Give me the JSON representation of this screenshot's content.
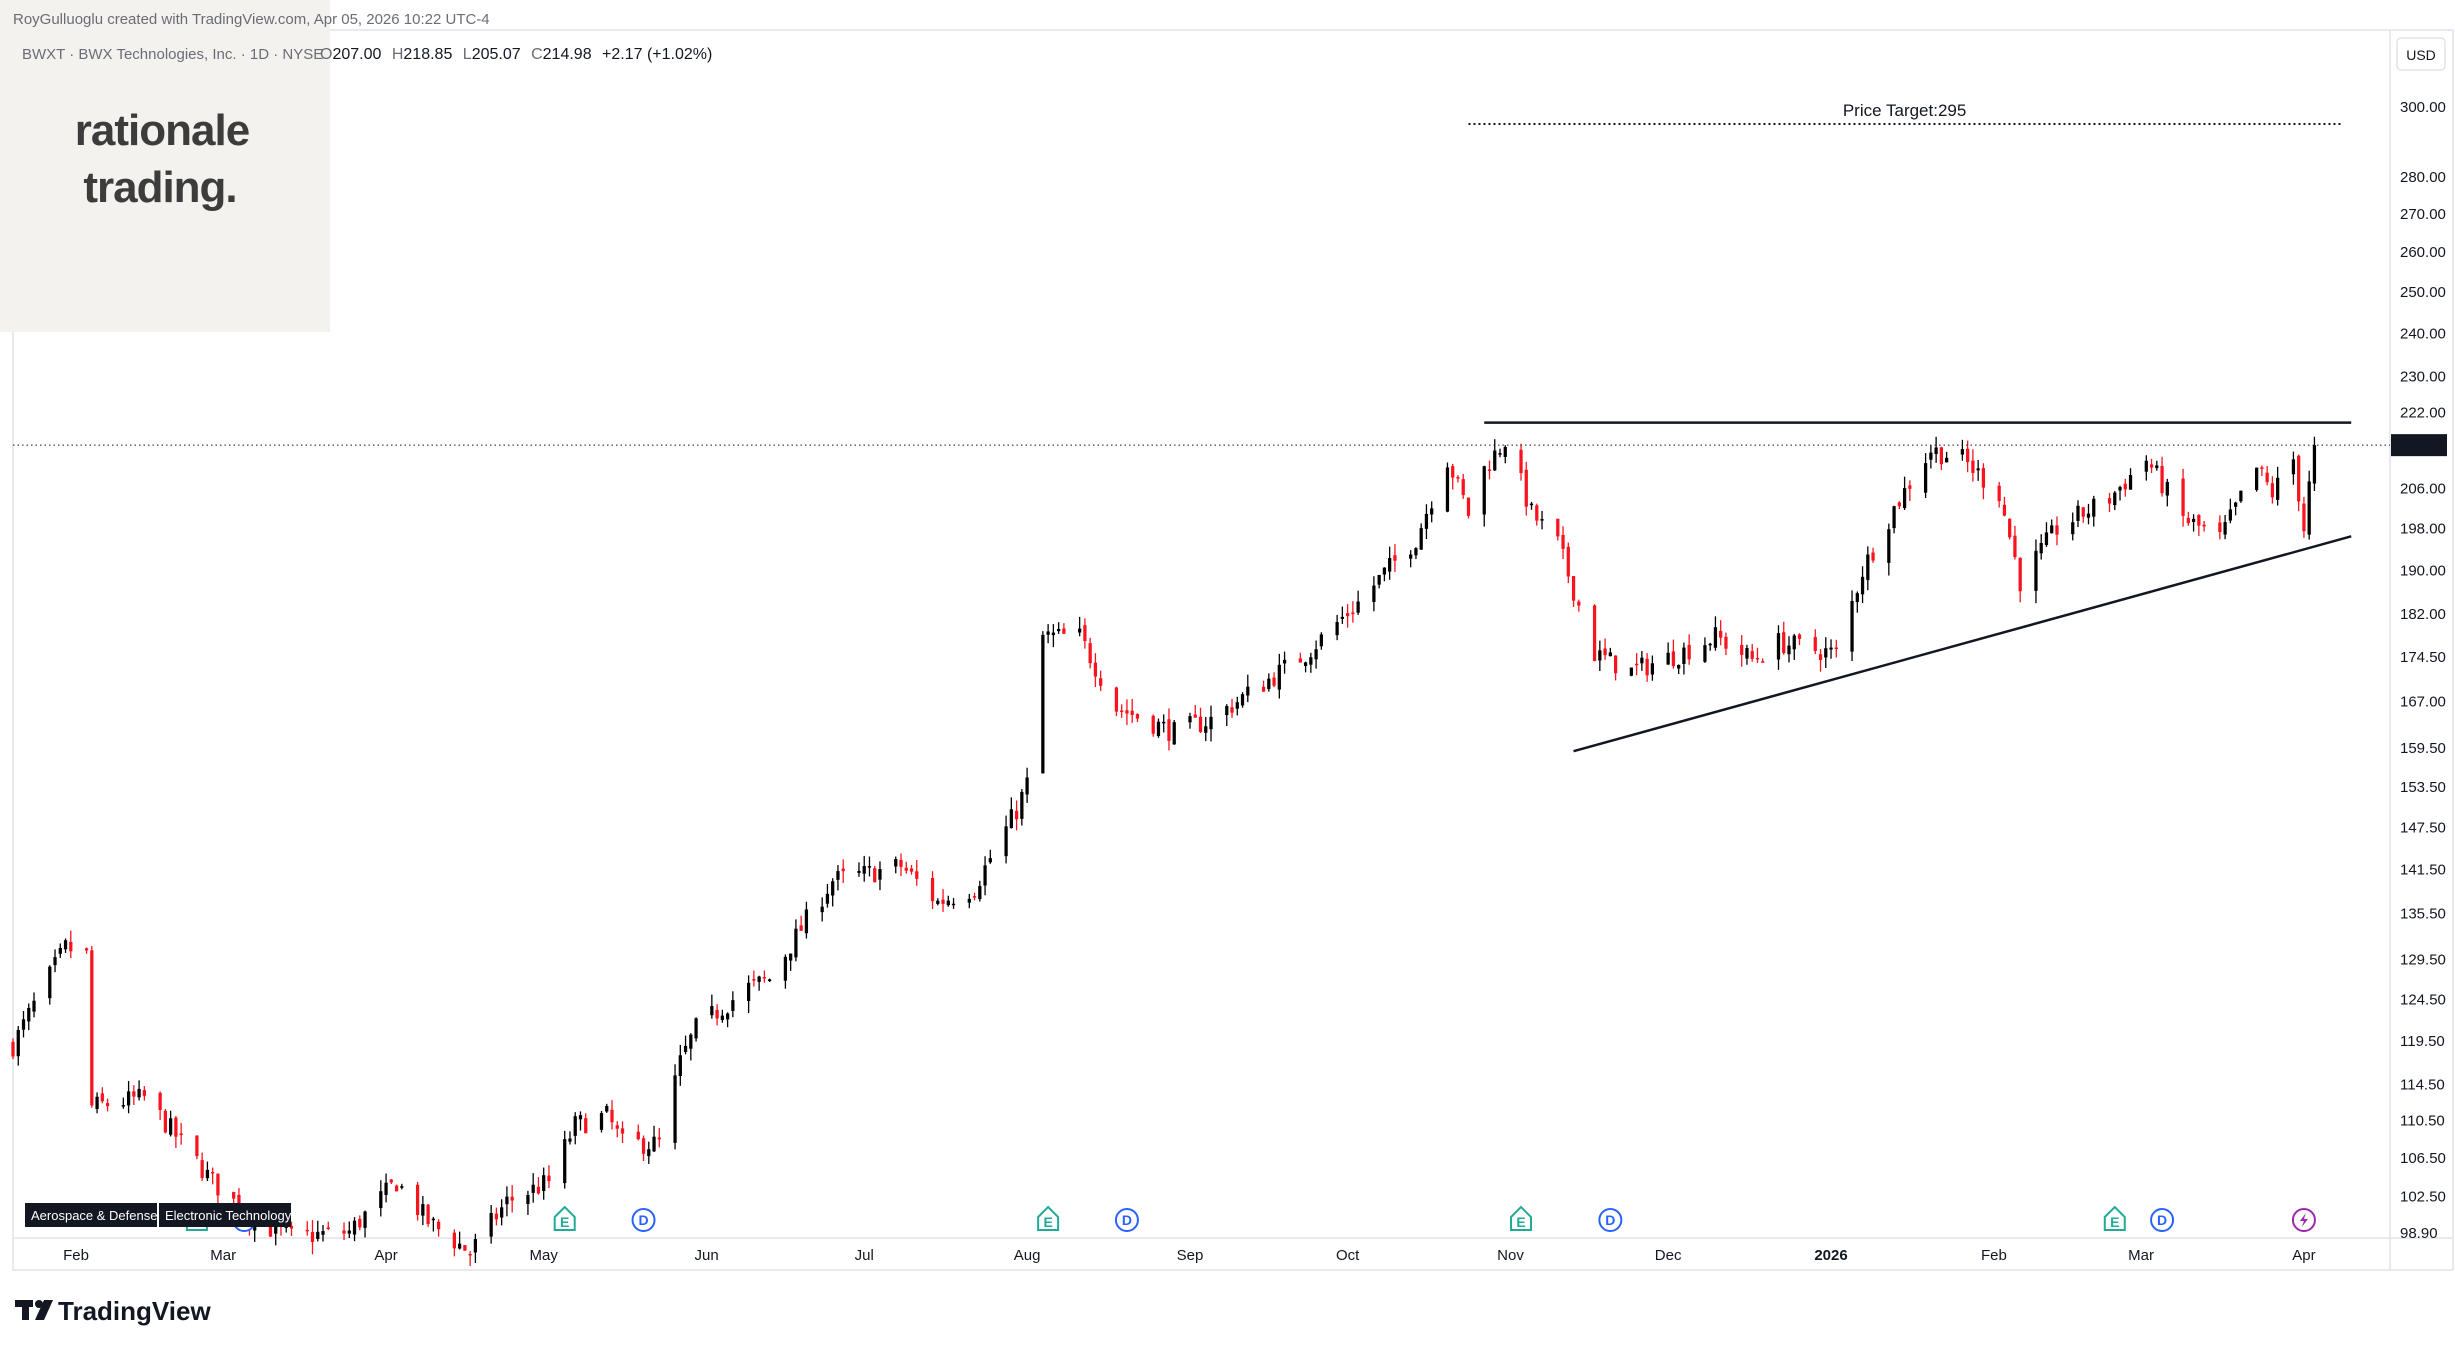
{
  "header": {
    "creator_line": "RoyGulluoglu created with TradingView.com, Apr 05, 2026 10:22 UTC-4",
    "symbol_line": "BWXT · BWX Technologies, Inc. · 1D · NYSE",
    "ohlc": {
      "open_label": "O",
      "open": "207.00",
      "high_label": "H",
      "high": "218.85",
      "low_label": "L",
      "low": "205.07",
      "close_label": "C",
      "close": "214.98",
      "change": "+2.17 (+1.02%)"
    }
  },
  "watermark": {
    "line1": "rationale",
    "line2": "trading."
  },
  "currency_button": "USD",
  "last_price_label": "214.98",
  "brand": {
    "name": "TradingView"
  },
  "sector_tags": [
    "Aerospace & Defense",
    "Electronic Technology"
  ],
  "colors": {
    "up": "#000000",
    "down": "#f7141e",
    "badge_e": "#22ab94",
    "badge_d": "#2962ff",
    "badge_split": "#9c27b0",
    "watermark_bg": "#f3f2ee"
  },
  "chart_data": {
    "type": "candlestick",
    "title": "BWXT · BWX Technologies, Inc. · 1D · NYSE",
    "y_scale": "log",
    "ylim": [
      98.9,
      305
    ],
    "y_ticks": [
      "300.00",
      "280.00",
      "270.00",
      "260.00",
      "250.00",
      "240.00",
      "230.00",
      "222.00",
      "214.98",
      "206.00",
      "198.00",
      "190.00",
      "182.00",
      "174.50",
      "167.00",
      "159.50",
      "153.50",
      "147.50",
      "141.50",
      "135.50",
      "129.50",
      "124.50",
      "119.50",
      "114.50",
      "110.50",
      "106.50",
      "102.50",
      "98.90"
    ],
    "x_months": [
      "Feb",
      "Mar",
      "Apr",
      "May",
      "Jun",
      "Jul",
      "Aug",
      "Sep",
      "Oct",
      "Nov",
      "Dec",
      "2026",
      "Feb",
      "Mar",
      "Apr"
    ],
    "x_range": [
      "2025-01-20",
      "2026-04-17"
    ],
    "price_target": {
      "label": "Price Target:295",
      "value": 295,
      "from": "2025-10-24",
      "to": "2026-04-08"
    },
    "resistance_line": {
      "value": 219.8,
      "from": "2025-10-27",
      "to": "2026-04-10"
    },
    "support_line": {
      "from": {
        "date": "2025-11-13",
        "value": 159.0
      },
      "to": {
        "date": "2026-04-10",
        "value": 196.5
      }
    },
    "last_price": 214.98,
    "events": [
      {
        "type": "E",
        "date": "2025-02-24"
      },
      {
        "type": "D",
        "date": "2025-03-05"
      },
      {
        "type": "E",
        "date": "2025-05-05"
      },
      {
        "type": "D",
        "date": "2025-05-20"
      },
      {
        "type": "E",
        "date": "2025-08-05"
      },
      {
        "type": "D",
        "date": "2025-08-20"
      },
      {
        "type": "E",
        "date": "2025-11-03"
      },
      {
        "type": "D",
        "date": "2025-11-20"
      },
      {
        "type": "E",
        "date": "2026-02-24"
      },
      {
        "type": "D",
        "date": "2026-03-05"
      },
      {
        "type": "S",
        "date": "2026-04-01"
      }
    ],
    "series": [
      {
        "name": "BWXT",
        "keyframes": [
          [
            "2025-01-20",
            119
          ],
          [
            "2025-01-30",
            131
          ],
          [
            "2025-02-03",
            130
          ],
          [
            "2025-02-04",
            112
          ],
          [
            "2025-02-14",
            113
          ],
          [
            "2025-02-27",
            104
          ],
          [
            "2025-03-07",
            100
          ],
          [
            "2025-03-14",
            98.5
          ],
          [
            "2025-03-25",
            99
          ],
          [
            "2025-04-03",
            104
          ],
          [
            "2025-04-09",
            100
          ],
          [
            "2025-04-17",
            97
          ],
          [
            "2025-04-24",
            102
          ],
          [
            "2025-05-02",
            104
          ],
          [
            "2025-05-07",
            110
          ],
          [
            "2025-05-13",
            111
          ],
          [
            "2025-05-16",
            108
          ],
          [
            "2025-05-23",
            108
          ],
          [
            "2025-05-27",
            117
          ],
          [
            "2025-05-30",
            121
          ],
          [
            "2025-06-09",
            126
          ],
          [
            "2025-06-13",
            127
          ],
          [
            "2025-06-25",
            140
          ],
          [
            "2025-07-02",
            141
          ],
          [
            "2025-07-08",
            142
          ],
          [
            "2025-07-15",
            137
          ],
          [
            "2025-07-22",
            139
          ],
          [
            "2025-07-30",
            150
          ],
          [
            "2025-08-01",
            154
          ],
          [
            "2025-08-04",
            178
          ],
          [
            "2025-08-11",
            178
          ],
          [
            "2025-08-18",
            166
          ],
          [
            "2025-08-29",
            162
          ],
          [
            "2025-09-05",
            164
          ],
          [
            "2025-09-15",
            170
          ],
          [
            "2025-09-23",
            175
          ],
          [
            "2025-10-03",
            184
          ],
          [
            "2025-10-14",
            196
          ],
          [
            "2025-10-20",
            212
          ],
          [
            "2025-10-24",
            201
          ],
          [
            "2025-10-27",
            210
          ],
          [
            "2025-10-31",
            216
          ],
          [
            "2025-11-05",
            201
          ],
          [
            "2025-11-10",
            195
          ],
          [
            "2025-11-17",
            175
          ],
          [
            "2025-11-24",
            172
          ],
          [
            "2025-12-03",
            175
          ],
          [
            "2025-12-10",
            178
          ],
          [
            "2025-12-17",
            174
          ],
          [
            "2025-12-22",
            177
          ],
          [
            "2026-01-02",
            175
          ],
          [
            "2026-01-07",
            190
          ],
          [
            "2026-01-13",
            202
          ],
          [
            "2026-01-20",
            214
          ],
          [
            "2026-01-26",
            212
          ],
          [
            "2026-02-02",
            205
          ],
          [
            "2026-02-06",
            188
          ],
          [
            "2026-02-13",
            198
          ],
          [
            "2026-02-23",
            204
          ],
          [
            "2026-03-02",
            212
          ],
          [
            "2026-03-09",
            200
          ],
          [
            "2026-03-16",
            196
          ],
          [
            "2026-03-23",
            210
          ],
          [
            "2026-03-26",
            205
          ],
          [
            "2026-03-30",
            212
          ],
          [
            "2026-04-01",
            198
          ],
          [
            "2026-04-03",
            214.98
          ]
        ]
      }
    ]
  }
}
